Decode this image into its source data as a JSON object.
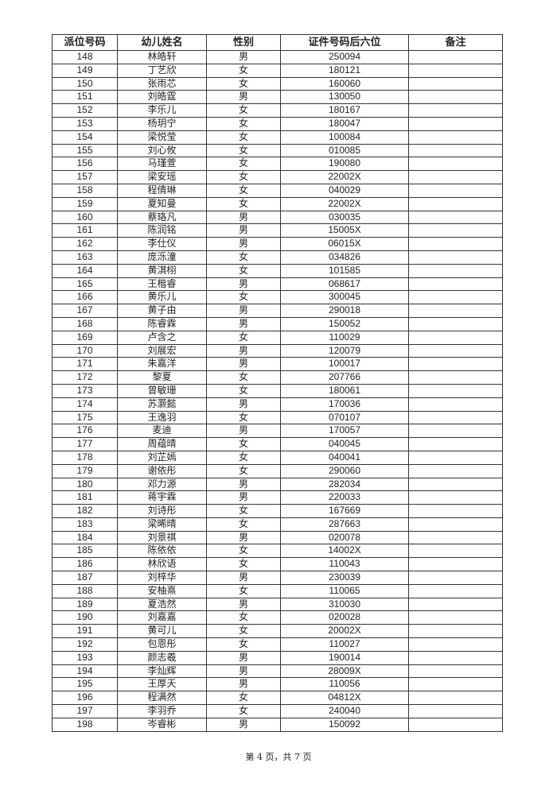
{
  "table": {
    "headers": [
      "派位号码",
      "幼儿姓名",
      "性别",
      "证件号码后六位",
      "备注"
    ],
    "rows": [
      [
        "148",
        "林皓轩",
        "男",
        "250094",
        ""
      ],
      [
        "149",
        "丁艺欣",
        "女",
        "180121",
        ""
      ],
      [
        "150",
        "张雨芯",
        "女",
        "160060",
        ""
      ],
      [
        "151",
        "刘皓霆",
        "男",
        "130050",
        ""
      ],
      [
        "152",
        "李乐儿",
        "女",
        "180167",
        ""
      ],
      [
        "153",
        "杨玥宁",
        "女",
        "180047",
        ""
      ],
      [
        "154",
        "梁悦莹",
        "女",
        "100084",
        ""
      ],
      [
        "155",
        "刘心攸",
        "女",
        "010085",
        ""
      ],
      [
        "156",
        "马瑾萱",
        "女",
        "190080",
        ""
      ],
      [
        "157",
        "梁安瑶",
        "女",
        "22002X",
        ""
      ],
      [
        "158",
        "程倩琳",
        "女",
        "040029",
        ""
      ],
      [
        "159",
        "夏知曼",
        "女",
        "22002X",
        ""
      ],
      [
        "160",
        "蔡珞凡",
        "男",
        "030035",
        ""
      ],
      [
        "161",
        "陈润铭",
        "男",
        "15005X",
        ""
      ],
      [
        "162",
        "李仕仪",
        "男",
        "06015X",
        ""
      ],
      [
        "163",
        "庞泺潼",
        "女",
        "034826",
        ""
      ],
      [
        "164",
        "黄淇栩",
        "女",
        "101585",
        ""
      ],
      [
        "165",
        "王楷睿",
        "男",
        "068617",
        ""
      ],
      [
        "166",
        "黄乐儿",
        "女",
        "300045",
        ""
      ],
      [
        "167",
        "黄子由",
        "男",
        "290018",
        ""
      ],
      [
        "168",
        "陈睿霖",
        "男",
        "150052",
        ""
      ],
      [
        "169",
        "卢含之",
        "女",
        "110029",
        ""
      ],
      [
        "170",
        "刘展宏",
        "男",
        "120079",
        ""
      ],
      [
        "171",
        "朱嘉洋",
        "男",
        "100017",
        ""
      ],
      [
        "172",
        "黎夏",
        "女",
        "207766",
        ""
      ],
      [
        "173",
        "曾敏珊",
        "女",
        "180061",
        ""
      ],
      [
        "174",
        "苏灏懿",
        "男",
        "170036",
        ""
      ],
      [
        "175",
        "王逸羽",
        "女",
        "070107",
        ""
      ],
      [
        "176",
        "麦迪",
        "男",
        "170057",
        ""
      ],
      [
        "177",
        "周蕴晴",
        "女",
        "040045",
        ""
      ],
      [
        "178",
        "刘芷嫣",
        "女",
        "040041",
        ""
      ],
      [
        "179",
        "谢依彤",
        "女",
        "290060",
        ""
      ],
      [
        "180",
        "邓力源",
        "男",
        "282034",
        ""
      ],
      [
        "181",
        "蒋宇霖",
        "男",
        "220033",
        ""
      ],
      [
        "182",
        "刘诗彤",
        "女",
        "167669",
        ""
      ],
      [
        "183",
        "梁晞晴",
        "女",
        "287663",
        ""
      ],
      [
        "184",
        "刘景祺",
        "男",
        "020078",
        ""
      ],
      [
        "185",
        "陈依依",
        "女",
        "14002X",
        ""
      ],
      [
        "186",
        "林欣语",
        "女",
        "110043",
        ""
      ],
      [
        "187",
        "刘梓华",
        "男",
        "230039",
        ""
      ],
      [
        "188",
        "安柚熹",
        "女",
        "110065",
        ""
      ],
      [
        "189",
        "夏浩然",
        "男",
        "310030",
        ""
      ],
      [
        "190",
        "刘嘉嘉",
        "女",
        "020028",
        ""
      ],
      [
        "191",
        "黄可儿",
        "女",
        "20002X",
        ""
      ],
      [
        "192",
        "包恩彤",
        "女",
        "110027",
        ""
      ],
      [
        "193",
        "颜志羲",
        "男",
        "190014",
        ""
      ],
      [
        "194",
        "李灿辉",
        "男",
        "28009X",
        ""
      ],
      [
        "195",
        "王厚天",
        "男",
        "110056",
        ""
      ],
      [
        "196",
        "程满然",
        "女",
        "04812X",
        ""
      ],
      [
        "197",
        "李羽乔",
        "女",
        "240040",
        ""
      ],
      [
        "198",
        "岑睿彬",
        "男",
        "150092",
        ""
      ]
    ]
  },
  "footer": {
    "page_label": "第 4 页，共 7 页"
  }
}
